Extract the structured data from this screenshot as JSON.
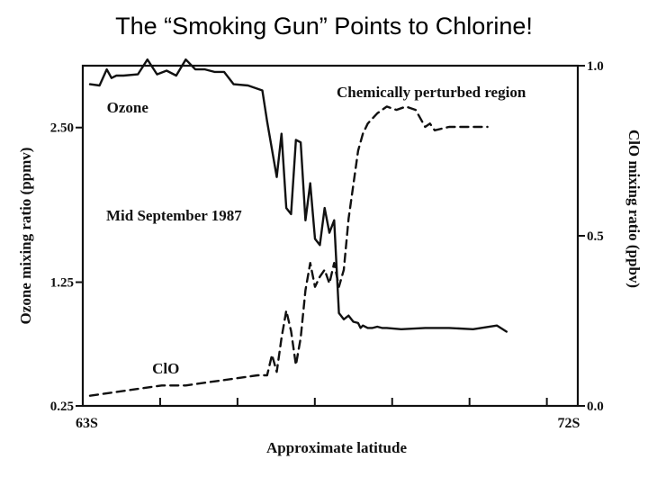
{
  "slide": {
    "title": "The “Smoking Gun” Points to Chlorine!"
  },
  "chart_data": {
    "type": "line",
    "xlabel": "Approximate latitude",
    "x_tick_labels": [
      "63S",
      "72S"
    ],
    "xlim": [
      0,
      1
    ],
    "y_left": {
      "label": "Ozone mixing ratio (ppmv)",
      "ticks": [
        0.25,
        1.25,
        2.5
      ],
      "tick_labels": [
        "0.25",
        "1.25",
        "2.50"
      ],
      "lim": [
        0.25,
        3.0
      ]
    },
    "y_right": {
      "label": "ClO mixing ratio (ppbv)",
      "ticks": [
        0.0,
        0.5,
        1.0
      ],
      "tick_labels": [
        "0.0",
        "0.5",
        "1.0"
      ],
      "lim": [
        0.0,
        1.0
      ]
    },
    "annotations": {
      "region": "Chemically perturbed region",
      "date": "Mid September 1987"
    },
    "series": [
      {
        "name": "Ozone",
        "axis": "left",
        "style": "solid",
        "x": [
          0.0,
          0.02,
          0.035,
          0.045,
          0.055,
          0.07,
          0.1,
          0.12,
          0.14,
          0.16,
          0.18,
          0.2,
          0.22,
          0.24,
          0.26,
          0.28,
          0.3,
          0.33,
          0.36,
          0.37,
          0.39,
          0.4,
          0.41,
          0.42,
          0.43,
          0.44,
          0.45,
          0.46,
          0.47,
          0.48,
          0.49,
          0.5,
          0.51,
          0.52,
          0.53,
          0.54,
          0.55,
          0.56,
          0.565,
          0.57,
          0.58,
          0.59,
          0.6,
          0.61,
          0.62,
          0.65,
          0.7,
          0.75,
          0.8,
          0.85,
          0.87
        ],
        "y": [
          2.85,
          2.84,
          2.97,
          2.9,
          2.92,
          2.92,
          2.93,
          3.05,
          2.93,
          2.96,
          2.92,
          3.05,
          2.97,
          2.97,
          2.95,
          2.95,
          2.85,
          2.84,
          2.8,
          2.55,
          2.1,
          2.45,
          1.85,
          1.8,
          2.4,
          2.38,
          1.75,
          2.05,
          1.6,
          1.55,
          1.85,
          1.65,
          1.75,
          1.0,
          0.95,
          0.98,
          0.93,
          0.92,
          0.88,
          0.9,
          0.88,
          0.88,
          0.89,
          0.88,
          0.88,
          0.87,
          0.88,
          0.88,
          0.87,
          0.9,
          0.85
        ]
      },
      {
        "name": "ClO",
        "axis": "right",
        "style": "dashed",
        "x": [
          0.0,
          0.05,
          0.1,
          0.15,
          0.2,
          0.25,
          0.3,
          0.35,
          0.37,
          0.38,
          0.39,
          0.4,
          0.41,
          0.42,
          0.43,
          0.44,
          0.45,
          0.46,
          0.47,
          0.48,
          0.49,
          0.5,
          0.51,
          0.52,
          0.53,
          0.54,
          0.55,
          0.56,
          0.57,
          0.58,
          0.6,
          0.62,
          0.64,
          0.66,
          0.68,
          0.7,
          0.71,
          0.72,
          0.75,
          0.8,
          0.83
        ],
        "y": [
          0.03,
          0.04,
          0.05,
          0.06,
          0.06,
          0.07,
          0.08,
          0.09,
          0.09,
          0.15,
          0.1,
          0.2,
          0.28,
          0.22,
          0.12,
          0.2,
          0.34,
          0.42,
          0.35,
          0.38,
          0.4,
          0.36,
          0.42,
          0.35,
          0.4,
          0.55,
          0.65,
          0.75,
          0.8,
          0.83,
          0.86,
          0.88,
          0.87,
          0.88,
          0.87,
          0.82,
          0.83,
          0.81,
          0.82,
          0.82,
          0.82
        ]
      }
    ]
  }
}
